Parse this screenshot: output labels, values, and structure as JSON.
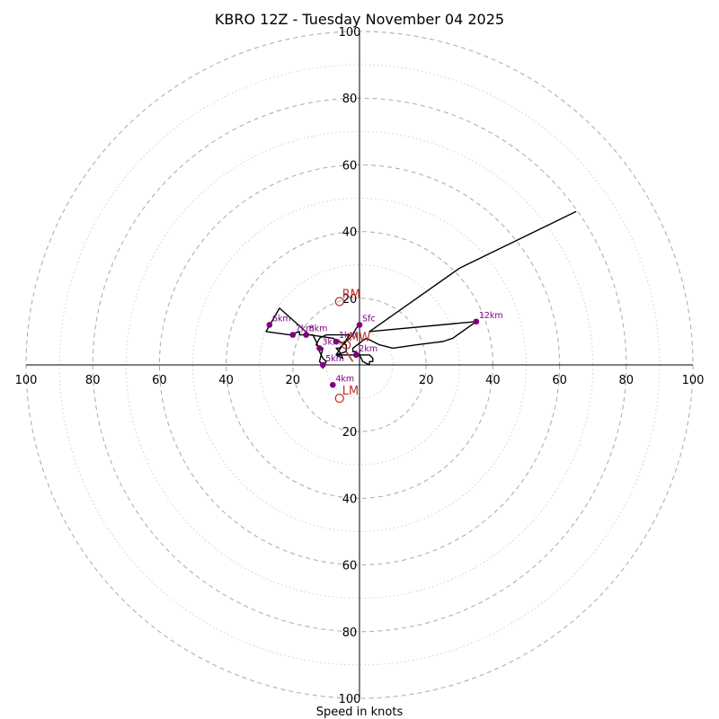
{
  "chart_data": {
    "type": "hodograph",
    "title": "KBRO 12Z - Tuesday November 04 2025",
    "xlabel": "Speed in knots",
    "speed_max": 100,
    "rings": {
      "major": [
        20,
        40,
        60,
        80,
        100
      ],
      "minor": [
        10,
        30,
        50,
        70,
        90
      ]
    },
    "tick_labels": {
      "values": [
        20,
        40,
        60,
        80,
        100
      ],
      "texts": [
        "20",
        "40",
        "60",
        "80",
        "100"
      ]
    },
    "colors": {
      "trace": "#000000",
      "height_marker": "#800080",
      "motion": "#c0302b",
      "ring": "#b0b0b0",
      "axis": "#000000"
    },
    "trace_uv": [
      [
        0,
        12
      ],
      [
        -1,
        11
      ],
      [
        -2,
        9
      ],
      [
        -4,
        7
      ],
      [
        -6,
        5
      ],
      [
        -7,
        5
      ],
      [
        -6,
        4
      ],
      [
        -5,
        2
      ],
      [
        -7,
        3
      ],
      [
        -3,
        9
      ],
      [
        -10,
        9
      ],
      [
        -12,
        8
      ],
      [
        -13,
        6
      ],
      [
        -11,
        5
      ],
      [
        -12,
        1
      ],
      [
        -11,
        0
      ],
      [
        -11,
        -1
      ],
      [
        -10,
        1
      ],
      [
        -11,
        2
      ],
      [
        -12,
        4
      ],
      [
        -13,
        7
      ],
      [
        -14,
        9
      ],
      [
        -18,
        9
      ],
      [
        -18,
        10
      ],
      [
        -21,
        9
      ],
      [
        -28,
        10
      ],
      [
        -24,
        17
      ],
      [
        -15,
        9
      ],
      [
        -8,
        8
      ],
      [
        -4,
        6
      ],
      [
        -4,
        4
      ],
      [
        -7,
        3
      ],
      [
        -1,
        3
      ],
      [
        3,
        3
      ],
      [
        4,
        2
      ],
      [
        4,
        1
      ],
      [
        3,
        1
      ],
      [
        3,
        0
      ],
      [
        1,
        1
      ],
      [
        0,
        3
      ],
      [
        -1,
        4
      ],
      [
        -2,
        4
      ],
      [
        -2,
        5
      ],
      [
        2,
        8
      ],
      [
        6,
        6
      ],
      [
        10,
        5
      ],
      [
        17,
        6
      ],
      [
        25,
        7
      ],
      [
        28,
        8
      ],
      [
        35,
        13
      ],
      [
        3,
        10
      ],
      [
        30,
        29
      ],
      [
        65,
        46
      ]
    ],
    "height_markers": [
      {
        "label": "Sfc",
        "u": 0,
        "v": 12
      },
      {
        "label": "1km",
        "u": -7,
        "v": 7
      },
      {
        "label": "2km",
        "u": -1,
        "v": 3
      },
      {
        "label": "3km",
        "u": -12,
        "v": 5
      },
      {
        "label": "4km",
        "u": -8,
        "v": -6
      },
      {
        "label": "5km",
        "u": -11,
        "v": 0
      },
      {
        "label": "6km",
        "u": -27,
        "v": 12
      },
      {
        "label": "7km",
        "u": -20,
        "v": 9
      },
      {
        "label": "8km",
        "u": -16,
        "v": 9
      },
      {
        "label": "12km",
        "u": 35,
        "v": 13
      }
    ],
    "storm_motion": [
      {
        "label": "RM",
        "u": -6,
        "v": 19
      },
      {
        "label": "LM",
        "u": -6,
        "v": -10
      },
      {
        "label": "MW",
        "u": -4,
        "v": 6
      }
    ],
    "mean_shear_vector": {
      "from": [
        -4,
        4
      ],
      "to": [
        -2,
        1
      ]
    }
  }
}
